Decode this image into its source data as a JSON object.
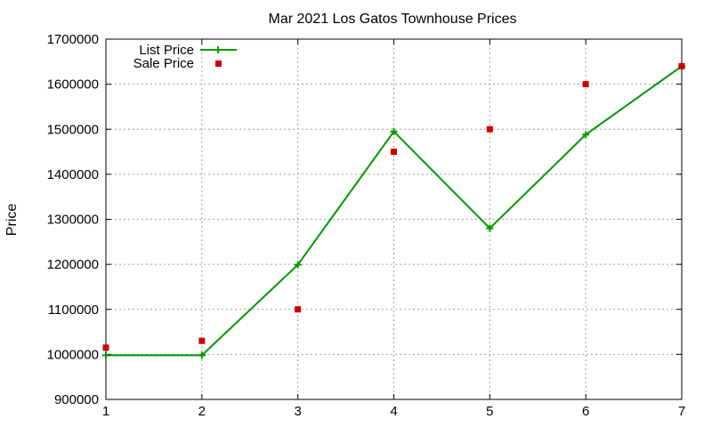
{
  "chart_data": {
    "type": "line",
    "title": "Mar 2021 Los Gatos Townhouse Prices",
    "xlabel": "",
    "ylabel": "Price",
    "x": [
      1,
      2,
      3,
      4,
      5,
      6,
      7
    ],
    "xlim": [
      1,
      7
    ],
    "ylim": [
      900000,
      1700000
    ],
    "xticks": [
      1,
      2,
      3,
      4,
      5,
      6,
      7
    ],
    "yticks": [
      900000,
      1000000,
      1100000,
      1200000,
      1300000,
      1400000,
      1500000,
      1600000,
      1700000
    ],
    "grid": true,
    "legend_position": "top-left",
    "series": [
      {
        "name": "List Price",
        "style": "line-with-plus-markers",
        "color": "#009900",
        "values": [
          998000,
          998000,
          1199000,
          1495000,
          1280000,
          1488000,
          1640000
        ]
      },
      {
        "name": "Sale Price",
        "style": "square-points",
        "color": "#cc0000",
        "values": [
          1015000,
          1030000,
          1100000,
          1450000,
          1500000,
          1600000,
          1640000
        ]
      }
    ]
  }
}
